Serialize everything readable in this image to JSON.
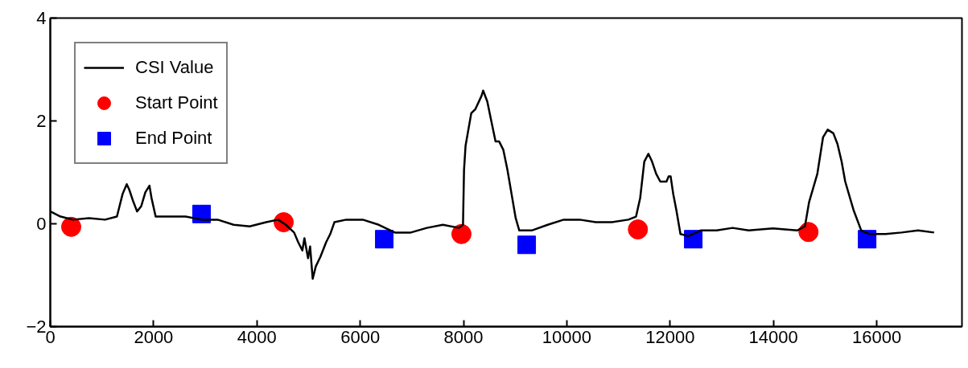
{
  "chart_data": {
    "type": "line",
    "xlim": [
      0,
      17650
    ],
    "ylim": [
      -2,
      4
    ],
    "xticks": [
      0,
      2000,
      4000,
      6000,
      8000,
      10000,
      12000,
      14000,
      16000
    ],
    "yticks": [
      -2,
      0,
      2,
      4
    ],
    "grid": false,
    "legend": "top left",
    "series": [
      {
        "name": "CSI Value",
        "color": "#000000",
        "marker": "none",
        "line_style": "solid",
        "x": [
          0,
          200,
          440,
          750,
          1060,
          1290,
          1340,
          1400,
          1480,
          1530,
          1600,
          1680,
          1760,
          1840,
          1920,
          1960,
          2040,
          2310,
          2620,
          2930,
          3240,
          3550,
          3860,
          4180,
          4410,
          4560,
          4720,
          4800,
          4880,
          4920,
          4990,
          5030,
          5080,
          5140,
          5230,
          5340,
          5420,
          5500,
          5730,
          6050,
          6360,
          6670,
          6980,
          7290,
          7600,
          7910,
          7990,
          8010,
          8040,
          8150,
          8230,
          8350,
          8380,
          8460,
          8540,
          8620,
          8690,
          8770,
          8850,
          8930,
          9010,
          9080,
          9320,
          9630,
          9940,
          10250,
          10560,
          10870,
          11190,
          11340,
          11420,
          11500,
          11580,
          11650,
          11730,
          11810,
          11930,
          11970,
          12010,
          12060,
          12120,
          12200,
          12350,
          12590,
          12900,
          13210,
          13520,
          13990,
          14460,
          14610,
          14690,
          14850,
          14960,
          15050,
          15160,
          15240,
          15320,
          15390,
          15550,
          15700,
          15860,
          16170,
          16480,
          16800,
          17110
        ],
        "values": [
          0.24,
          0.14,
          0.08,
          0.11,
          0.08,
          0.14,
          0.34,
          0.58,
          0.77,
          0.66,
          0.45,
          0.24,
          0.34,
          0.61,
          0.74,
          0.5,
          0.14,
          0.14,
          0.14,
          0.08,
          0.08,
          -0.02,
          -0.05,
          0.03,
          0.08,
          -0.02,
          -0.17,
          -0.36,
          -0.52,
          -0.28,
          -0.67,
          -0.44,
          -1.07,
          -0.83,
          -0.64,
          -0.36,
          -0.2,
          0.03,
          0.08,
          0.08,
          -0.02,
          -0.17,
          -0.17,
          -0.08,
          -0.02,
          -0.08,
          -0.02,
          1.05,
          1.52,
          2.15,
          2.23,
          2.49,
          2.59,
          2.38,
          1.99,
          1.6,
          1.6,
          1.44,
          1.05,
          0.58,
          0.11,
          -0.13,
          -0.13,
          -0.02,
          0.08,
          0.08,
          0.03,
          0.03,
          0.08,
          0.14,
          0.5,
          1.21,
          1.36,
          1.21,
          0.97,
          0.82,
          0.82,
          0.92,
          0.92,
          0.58,
          0.27,
          -0.2,
          -0.24,
          -0.13,
          -0.13,
          -0.08,
          -0.13,
          -0.09,
          -0.13,
          -0.05,
          0.42,
          0.97,
          1.68,
          1.83,
          1.76,
          1.55,
          1.21,
          0.82,
          0.27,
          -0.13,
          -0.2,
          -0.2,
          -0.17,
          -0.13,
          -0.17
        ]
      },
      {
        "name": "Start Point",
        "type": "scatter",
        "color": "#ff0000",
        "marker": "circle",
        "x": [
          405,
          4518,
          7960,
          11376,
          14679
        ],
        "values": [
          -0.06,
          0.03,
          -0.2,
          -0.11,
          -0.16
        ]
      },
      {
        "name": "End Point",
        "type": "scatter",
        "color": "#0000ff",
        "marker": "square",
        "x": [
          2929,
          6466,
          9223,
          12448,
          15814
        ],
        "values": [
          0.19,
          -0.3,
          -0.41,
          -0.3,
          -0.3
        ]
      }
    ]
  }
}
